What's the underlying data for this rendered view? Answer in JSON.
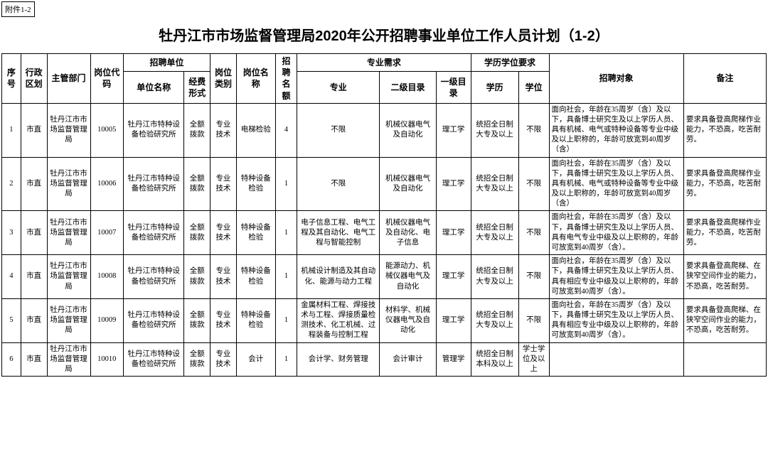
{
  "attachment_label": "附件1-2",
  "title": "牡丹江市市场监督管理局2020年公开招聘事业单位工作人员计划（1-2）",
  "headers": {
    "seq": "序号",
    "admin": "行政区划",
    "dept": "主管部门",
    "code": "岗位代码",
    "unit_group": "招聘单位",
    "unit_name": "单位名称",
    "fund": "经费形式",
    "ptype": "岗位类别",
    "pname": "岗位名称",
    "quota": "招聘名额",
    "major_group": "专业需求",
    "major": "专业",
    "cat2": "二级目录",
    "cat1": "一级目录",
    "edu_group": "学历学位要求",
    "edu": "学历",
    "deg": "学位",
    "target": "招聘对象",
    "note": "备注"
  },
  "rows": [
    {
      "seq": "1",
      "admin": "市直",
      "dept": "牡丹江市市场监督管理局",
      "code": "10005",
      "unit": "牡丹江市特种设备检验研究所",
      "fund": "全额拨款",
      "ptype": "专业技术",
      "pname": "电梯检验",
      "quota": "4",
      "major": "不限",
      "cat2": "机械仪器电气及自动化",
      "cat1": "理工学",
      "edu": "统招全日制大专及以上",
      "deg": "不限",
      "target": "面向社会，年龄在35周岁（含）及以下，具备博士研究生及以上学历人员、具有机械、电气或特种设备等专业中级及以上职称的，年龄可放宽到40周岁（含）",
      "note": "要求具备登高爬梯作业能力，不恐高，吃苦耐劳。"
    },
    {
      "seq": "2",
      "admin": "市直",
      "dept": "牡丹江市市场监督管理局",
      "code": "10006",
      "unit": "牡丹江市特种设备检验研究所",
      "fund": "全额拨款",
      "ptype": "专业技术",
      "pname": "特种设备检验",
      "quota": "1",
      "major": "不限",
      "cat2": "机械仪器电气及自动化",
      "cat1": "理工学",
      "edu": "统招全日制大专及以上",
      "deg": "不限",
      "target": "面向社会，年龄在35周岁（含）及以下，具备博士研究生及以上学历人员、具有机械、电气或特种设备等专业中级及以上职称的，年龄可放宽到40周岁（含）",
      "note": "要求具备登高爬梯作业能力，不恐高，吃苦耐劳。"
    },
    {
      "seq": "3",
      "admin": "市直",
      "dept": "牡丹江市市场监督管理局",
      "code": "10007",
      "unit": "牡丹江市特种设备检验研究所",
      "fund": "全额拨款",
      "ptype": "专业技术",
      "pname": "特种设备检验",
      "quota": "1",
      "major": "电子信息工程、电气工程及其自动化、电气工程与智能控制",
      "cat2": "机械仪器电气及自动化、电子信息",
      "cat1": "理工学",
      "edu": "统招全日制大专及以上",
      "deg": "不限",
      "target": "面向社会，年龄在35周岁（含）及以下，具备博士研究生及以上学历人员、具有电气专业中级及以上职称的，年龄可放宽到40周岁（含）。",
      "note": "要求具备登高爬梯作业能力，不恐高，吃苦耐劳。"
    },
    {
      "seq": "4",
      "admin": "市直",
      "dept": "牡丹江市市场监督管理局",
      "code": "10008",
      "unit": "牡丹江市特种设备检验研究所",
      "fund": "全额拨款",
      "ptype": "专业技术",
      "pname": "特种设备检验",
      "quota": "1",
      "major": "机械设计制造及其自动化、能源与动力工程",
      "cat2": "能源动力、机械仪器电气及自动化",
      "cat1": "理工学",
      "edu": "统招全日制大专及以上",
      "deg": "不限",
      "target": "面向社会，年龄在35周岁（含）及以下，具备博士研究生及以上学历人员、具有相应专业中级及以上职称的，年龄可放宽到40周岁（含）。",
      "note": "要求具备登高爬梯、在狭窄空间作业的能力，不恐高，吃苦耐劳。"
    },
    {
      "seq": "5",
      "admin": "市直",
      "dept": "牡丹江市市场监督管理局",
      "code": "10009",
      "unit": "牡丹江市特种设备检验研究所",
      "fund": "全额拨款",
      "ptype": "专业技术",
      "pname": "特种设备检验",
      "quota": "1",
      "major": "金属材料工程、焊接技术与工程、焊接质量检测技术、化工机械、过程装备与控制工程",
      "cat2": "材料学、机械仪器电气及自动化",
      "cat1": "理工学",
      "edu": "统招全日制大专及以上",
      "deg": "不限",
      "target": "面向社会，年龄在35周岁（含）及以下，具备博士研究生及以上学历人员、具有相应专业中级及以上职称的，年龄可放宽到40周岁（含）。",
      "note": "要求具备登高爬梯、在狭窄空间作业的能力，不恐高，吃苦耐劳。"
    },
    {
      "seq": "6",
      "admin": "市直",
      "dept": "牡丹江市市场监督管理局",
      "code": "10010",
      "unit": "牡丹江市特种设备检验研究所",
      "fund": "全额拨款",
      "ptype": "专业技术",
      "pname": "会计",
      "quota": "1",
      "major": "会计学、财务管理",
      "cat2": "会计审计",
      "cat1": "管理学",
      "edu": "统招全日制本科及以上",
      "deg": "学士学位及以上",
      "target": "",
      "note": ""
    }
  ]
}
